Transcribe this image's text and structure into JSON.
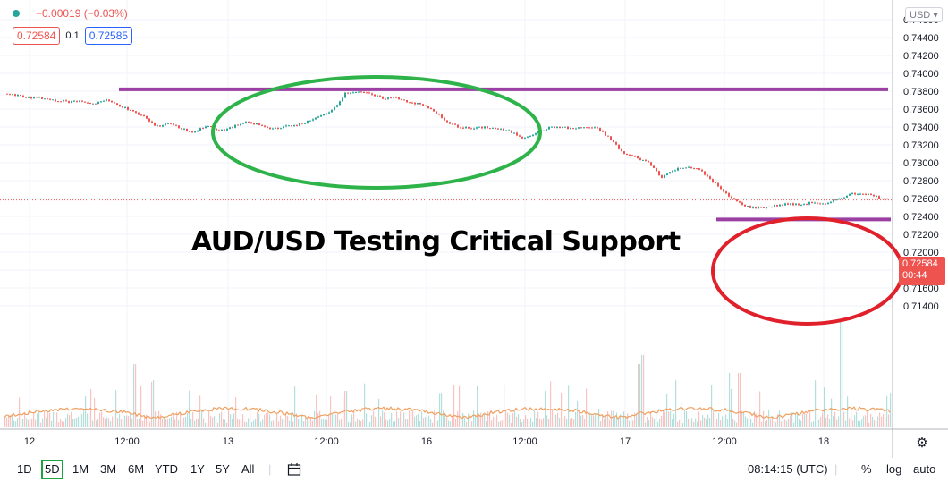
{
  "header": {
    "change": "−0.00019 (−0.03%)",
    "bid": "0.72584",
    "spread": "0.1",
    "ask": "0.72585"
  },
  "currency": "USD",
  "title": "AUD/USD Testing Critical Support",
  "price_tag": {
    "price": "0.72584",
    "countdown": "00:44"
  },
  "bottom": {
    "ranges": [
      "1D",
      "5D",
      "1M",
      "3M",
      "6M",
      "YTD",
      "1Y",
      "5Y",
      "All"
    ],
    "active_range": "5D",
    "time": "08:14:15 (UTC)",
    "percent": "%",
    "log": "log",
    "auto": "auto"
  },
  "colors": {
    "up": "#26a69a",
    "down": "#ef5350",
    "resistance_line": "#9c3fa3",
    "green_circle": "#2db34a",
    "red_circle": "#e0202a",
    "volume_ma": "#f0a060"
  },
  "chart_data": {
    "type": "line",
    "y_ticks": [
      "0.74600",
      "0.74400",
      "0.74200",
      "0.74000",
      "0.73800",
      "0.73600",
      "0.73400",
      "0.73200",
      "0.73000",
      "0.72800",
      "0.72600",
      "0.72400",
      "0.72200",
      "0.72000",
      "0.71800",
      "0.71600",
      "0.71400"
    ],
    "x_ticks": [
      "12",
      "12:00",
      "13",
      "12:00",
      "16",
      "12:00",
      "17",
      "12:00",
      "18"
    ],
    "ylim": [
      0.7135,
      0.7465
    ],
    "series": [
      {
        "values": [
          0.7377,
          0.7375,
          0.7373,
          0.7372,
          0.737,
          0.7368,
          0.7369,
          0.7366,
          0.737,
          0.7365,
          0.7358,
          0.7352,
          0.734,
          0.7345,
          0.7338,
          0.7334,
          0.7342,
          0.7335,
          0.734,
          0.7345,
          0.7343,
          0.7338,
          0.734,
          0.7342,
          0.7346,
          0.7352,
          0.736,
          0.7378,
          0.738,
          0.7376,
          0.7372,
          0.7373,
          0.7368,
          0.7365,
          0.7358,
          0.7345,
          0.734,
          0.7338,
          0.734,
          0.7338,
          0.7335,
          0.7328,
          0.7333,
          0.7339,
          0.734,
          0.7338,
          0.734,
          0.7338,
          0.7326,
          0.731,
          0.7306,
          0.73,
          0.7284,
          0.7292,
          0.7296,
          0.7292,
          0.728,
          0.7266,
          0.7256,
          0.725,
          0.725,
          0.7252,
          0.7254,
          0.7253,
          0.7256,
          0.7253,
          0.726,
          0.7265,
          0.7266,
          0.7262,
          0.7258
        ]
      }
    ],
    "resistance": 0.73821,
    "support": 0.72366
  }
}
